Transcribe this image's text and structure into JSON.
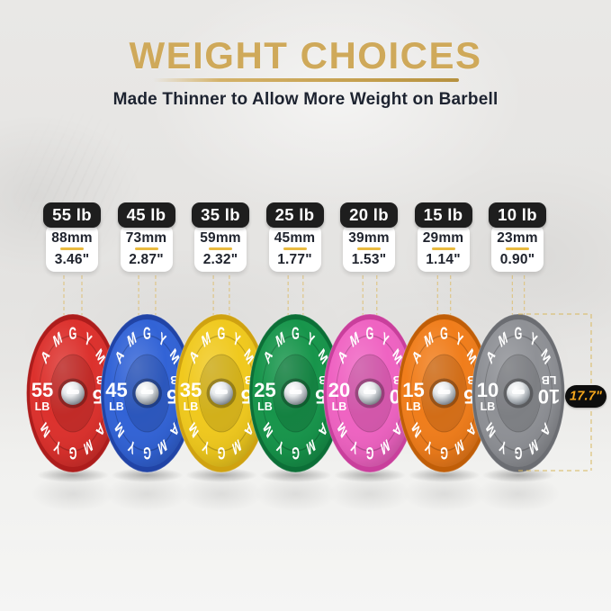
{
  "header": {
    "title": "WEIGHT CHOICES",
    "subtitle": "Made Thinner to Allow More Weight on Barbell"
  },
  "brand": "AMGYM",
  "dimension": {
    "label": "17.7\""
  },
  "plates": [
    {
      "id": "55lb",
      "label": "55 lb",
      "mm": "88mm",
      "inch": "3.46\"",
      "num": "55",
      "unit": "LB",
      "color": "#dc312d",
      "edge": "#ad1d1c"
    },
    {
      "id": "45lb",
      "label": "45 lb",
      "mm": "73mm",
      "inch": "2.87\"",
      "num": "45",
      "unit": "LB",
      "color": "#3263d6",
      "edge": "#2144a6"
    },
    {
      "id": "35lb",
      "label": "35 lb",
      "mm": "59mm",
      "inch": "2.32\"",
      "num": "35",
      "unit": "LB",
      "color": "#f0c91e",
      "edge": "#cfa211"
    },
    {
      "id": "25lb",
      "label": "25 lb",
      "mm": "45mm",
      "inch": "1.77\"",
      "num": "25",
      "unit": "LB",
      "color": "#17954b",
      "edge": "#0c6f37"
    },
    {
      "id": "20lb",
      "label": "20 lb",
      "mm": "39mm",
      "inch": "1.53\"",
      "num": "20",
      "unit": "LB",
      "color": "#ef63c2",
      "edge": "#c93f9c"
    },
    {
      "id": "15lb",
      "label": "15 lb",
      "mm": "29mm",
      "inch": "1.14\"",
      "num": "15",
      "unit": "LB",
      "color": "#f07d1b",
      "edge": "#c05e08"
    },
    {
      "id": "10lb",
      "label": "10 lb",
      "mm": "23mm",
      "inch": "0.90\"",
      "num": "10",
      "unit": "LB",
      "color": "#8f9196",
      "edge": "#6b6d72"
    }
  ],
  "colors": {
    "accent_gold": "#cfa95a",
    "divider_gold": "#e9ba3e",
    "dash_gold": "#ddc078",
    "badge_bg": "#1e1e1e",
    "text_dark": "#1d2330",
    "pill_bg": "#0d0d0d",
    "pill_text": "#f5a71d",
    "plate_text": "#ffffff"
  }
}
